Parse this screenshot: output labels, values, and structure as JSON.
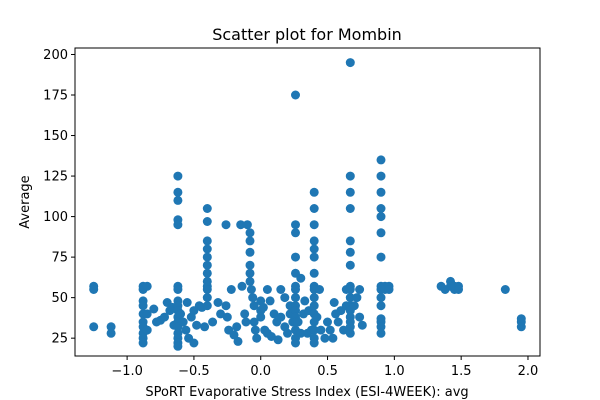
{
  "chart_data": {
    "type": "scatter",
    "title": "Scatter plot for Mombin",
    "xlabel": "SPoRT Evaporative Stress Index (ESI-4WEEK): avg",
    "ylabel": "Average",
    "xlim": [
      -1.39,
      2.09
    ],
    "ylim": [
      14,
      204
    ],
    "xticks": [
      -1.0,
      -0.5,
      0.0,
      0.5,
      1.0,
      1.5,
      2.0
    ],
    "xtick_labels": [
      "−1.0",
      "−0.5",
      "0.0",
      "0.5",
      "1.0",
      "1.5",
      "2.0"
    ],
    "yticks": [
      25,
      50,
      75,
      100,
      125,
      150,
      175,
      200
    ],
    "ytick_labels": [
      "25",
      "50",
      "75",
      "100",
      "125",
      "150",
      "175",
      "200"
    ],
    "grid": false,
    "marker_color": "#1f77b4",
    "series": [
      {
        "points": [
          [
            -1.25,
            57
          ],
          [
            -1.25,
            55
          ],
          [
            -1.25,
            32
          ],
          [
            -1.12,
            32
          ],
          [
            -1.12,
            28
          ],
          [
            -0.88,
            57
          ],
          [
            -0.88,
            55
          ],
          [
            -0.88,
            48
          ],
          [
            -0.88,
            45
          ],
          [
            -0.88,
            40
          ],
          [
            -0.88,
            35
          ],
          [
            -0.88,
            32
          ],
          [
            -0.88,
            28
          ],
          [
            -0.88,
            25
          ],
          [
            -0.88,
            22
          ],
          [
            -0.85,
            57
          ],
          [
            -0.85,
            40
          ],
          [
            -0.85,
            30
          ],
          [
            -0.8,
            43
          ],
          [
            -0.78,
            35
          ],
          [
            -0.75,
            36
          ],
          [
            -0.72,
            38
          ],
          [
            -0.7,
            47
          ],
          [
            -0.68,
            42
          ],
          [
            -0.66,
            44
          ],
          [
            -0.65,
            33
          ],
          [
            -0.62,
            125
          ],
          [
            -0.62,
            115
          ],
          [
            -0.62,
            110
          ],
          [
            -0.62,
            98
          ],
          [
            -0.62,
            95
          ],
          [
            -0.62,
            57
          ],
          [
            -0.62,
            55
          ],
          [
            -0.62,
            48
          ],
          [
            -0.62,
            45
          ],
          [
            -0.62,
            42
          ],
          [
            -0.62,
            38
          ],
          [
            -0.62,
            35
          ],
          [
            -0.62,
            32
          ],
          [
            -0.62,
            28
          ],
          [
            -0.62,
            25
          ],
          [
            -0.62,
            22
          ],
          [
            -0.62,
            20
          ],
          [
            -0.6,
            40
          ],
          [
            -0.58,
            35
          ],
          [
            -0.56,
            30
          ],
          [
            -0.55,
            47
          ],
          [
            -0.54,
            25
          ],
          [
            -0.52,
            38
          ],
          [
            -0.5,
            42
          ],
          [
            -0.5,
            22
          ],
          [
            -0.48,
            33
          ],
          [
            -0.46,
            45
          ],
          [
            -0.44,
            44
          ],
          [
            -0.42,
            32
          ],
          [
            -0.4,
            105
          ],
          [
            -0.4,
            97
          ],
          [
            -0.4,
            85
          ],
          [
            -0.4,
            80
          ],
          [
            -0.4,
            75
          ],
          [
            -0.4,
            70
          ],
          [
            -0.4,
            65
          ],
          [
            -0.4,
            60
          ],
          [
            -0.4,
            57
          ],
          [
            -0.4,
            55
          ],
          [
            -0.4,
            50
          ],
          [
            -0.4,
            45
          ],
          [
            -0.36,
            35
          ],
          [
            -0.32,
            47
          ],
          [
            -0.3,
            40
          ],
          [
            -0.26,
            95
          ],
          [
            -0.26,
            45
          ],
          [
            -0.25,
            38
          ],
          [
            -0.24,
            30
          ],
          [
            -0.22,
            55
          ],
          [
            -0.2,
            27
          ],
          [
            -0.18,
            32
          ],
          [
            -0.17,
            23
          ],
          [
            -0.15,
            95
          ],
          [
            -0.14,
            57
          ],
          [
            -0.12,
            40
          ],
          [
            -0.11,
            35
          ],
          [
            -0.1,
            95
          ],
          [
            -0.08,
            90
          ],
          [
            -0.08,
            85
          ],
          [
            -0.08,
            78
          ],
          [
            -0.08,
            70
          ],
          [
            -0.08,
            65
          ],
          [
            -0.08,
            60
          ],
          [
            -0.07,
            55
          ],
          [
            -0.06,
            50
          ],
          [
            -0.05,
            45
          ],
          [
            -0.05,
            35
          ],
          [
            -0.04,
            30
          ],
          [
            -0.03,
            25
          ],
          [
            0.0,
            48
          ],
          [
            0.0,
            42
          ],
          [
            0.0,
            38
          ],
          [
            0.02,
            44
          ],
          [
            0.03,
            30
          ],
          [
            0.05,
            28
          ],
          [
            0.05,
            55
          ],
          [
            0.07,
            48
          ],
          [
            0.08,
            26
          ],
          [
            0.1,
            40
          ],
          [
            0.12,
            35
          ],
          [
            0.13,
            24
          ],
          [
            0.15,
            55
          ],
          [
            0.15,
            38
          ],
          [
            0.18,
            50
          ],
          [
            0.18,
            32
          ],
          [
            0.2,
            28
          ],
          [
            0.22,
            45
          ],
          [
            0.22,
            40
          ],
          [
            0.24,
            35
          ],
          [
            0.26,
            175
          ],
          [
            0.26,
            95
          ],
          [
            0.26,
            90
          ],
          [
            0.26,
            75
          ],
          [
            0.26,
            65
          ],
          [
            0.26,
            57
          ],
          [
            0.26,
            55
          ],
          [
            0.26,
            50
          ],
          [
            0.26,
            45
          ],
          [
            0.26,
            42
          ],
          [
            0.26,
            38
          ],
          [
            0.26,
            35
          ],
          [
            0.26,
            30
          ],
          [
            0.26,
            25
          ],
          [
            0.26,
            22
          ],
          [
            0.28,
            35
          ],
          [
            0.3,
            62
          ],
          [
            0.3,
            28
          ],
          [
            0.32,
            40
          ],
          [
            0.33,
            48
          ],
          [
            0.35,
            28
          ],
          [
            0.36,
            42
          ],
          [
            0.38,
            30
          ],
          [
            0.4,
            115
          ],
          [
            0.4,
            105
          ],
          [
            0.4,
            95
          ],
          [
            0.4,
            85
          ],
          [
            0.4,
            80
          ],
          [
            0.4,
            75
          ],
          [
            0.4,
            65
          ],
          [
            0.4,
            57
          ],
          [
            0.4,
            55
          ],
          [
            0.4,
            50
          ],
          [
            0.4,
            45
          ],
          [
            0.4,
            40
          ],
          [
            0.4,
            35
          ],
          [
            0.4,
            30
          ],
          [
            0.4,
            25
          ],
          [
            0.4,
            22
          ],
          [
            0.42,
            38
          ],
          [
            0.44,
            55
          ],
          [
            0.45,
            30
          ],
          [
            0.48,
            25
          ],
          [
            0.5,
            35
          ],
          [
            0.52,
            30
          ],
          [
            0.54,
            25
          ],
          [
            0.55,
            47
          ],
          [
            0.56,
            40
          ],
          [
            0.58,
            35
          ],
          [
            0.6,
            42
          ],
          [
            0.62,
            30
          ],
          [
            0.64,
            45
          ],
          [
            0.64,
            55
          ],
          [
            0.67,
            195
          ],
          [
            0.67,
            125
          ],
          [
            0.67,
            115
          ],
          [
            0.67,
            105
          ],
          [
            0.67,
            85
          ],
          [
            0.67,
            78
          ],
          [
            0.67,
            70
          ],
          [
            0.67,
            57
          ],
          [
            0.67,
            55
          ],
          [
            0.67,
            50
          ],
          [
            0.67,
            45
          ],
          [
            0.67,
            42
          ],
          [
            0.67,
            38
          ],
          [
            0.67,
            35
          ],
          [
            0.67,
            32
          ],
          [
            0.67,
            28
          ],
          [
            0.7,
            45
          ],
          [
            0.72,
            50
          ],
          [
            0.74,
            55
          ],
          [
            0.74,
            38
          ],
          [
            0.76,
            33
          ],
          [
            0.9,
            135
          ],
          [
            0.9,
            125
          ],
          [
            0.9,
            115
          ],
          [
            0.9,
            105
          ],
          [
            0.9,
            100
          ],
          [
            0.9,
            90
          ],
          [
            0.9,
            75
          ],
          [
            0.9,
            57
          ],
          [
            0.9,
            55
          ],
          [
            0.9,
            50
          ],
          [
            0.9,
            45
          ],
          [
            0.9,
            37
          ],
          [
            0.9,
            35
          ],
          [
            0.9,
            32
          ],
          [
            0.9,
            28
          ],
          [
            0.93,
            57
          ],
          [
            0.93,
            55
          ],
          [
            0.96,
            57
          ],
          [
            0.96,
            55
          ],
          [
            1.35,
            57
          ],
          [
            1.38,
            55
          ],
          [
            1.42,
            60
          ],
          [
            1.42,
            57
          ],
          [
            1.45,
            55
          ],
          [
            1.45,
            57
          ],
          [
            1.48,
            57
          ],
          [
            1.48,
            55
          ],
          [
            1.83,
            55
          ],
          [
            1.95,
            37
          ],
          [
            1.95,
            35
          ],
          [
            1.95,
            32
          ]
        ]
      }
    ]
  }
}
